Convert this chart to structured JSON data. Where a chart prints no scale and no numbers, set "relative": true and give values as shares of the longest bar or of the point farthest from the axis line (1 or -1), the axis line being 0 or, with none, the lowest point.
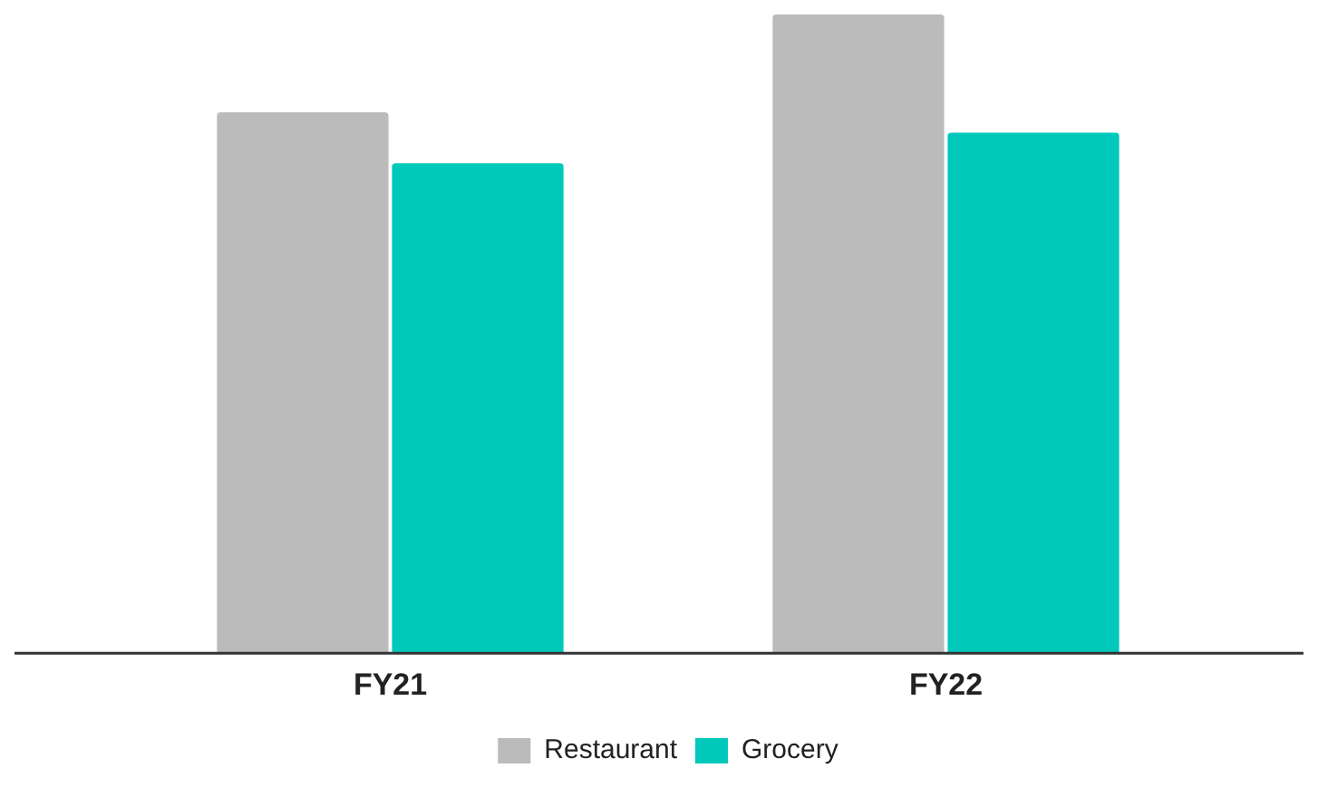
{
  "chart_data": {
    "type": "bar",
    "relative": true,
    "categories": [
      "FY21",
      "FY22"
    ],
    "series": [
      {
        "name": "Restaurant",
        "color": "#bbbbbb",
        "values": [
          0.847,
          1
        ]
      },
      {
        "name": "Grocery",
        "color": "#00c9bb",
        "values": [
          0.767,
          0.815
        ]
      }
    ],
    "legend": "bottom",
    "grid": false
  }
}
